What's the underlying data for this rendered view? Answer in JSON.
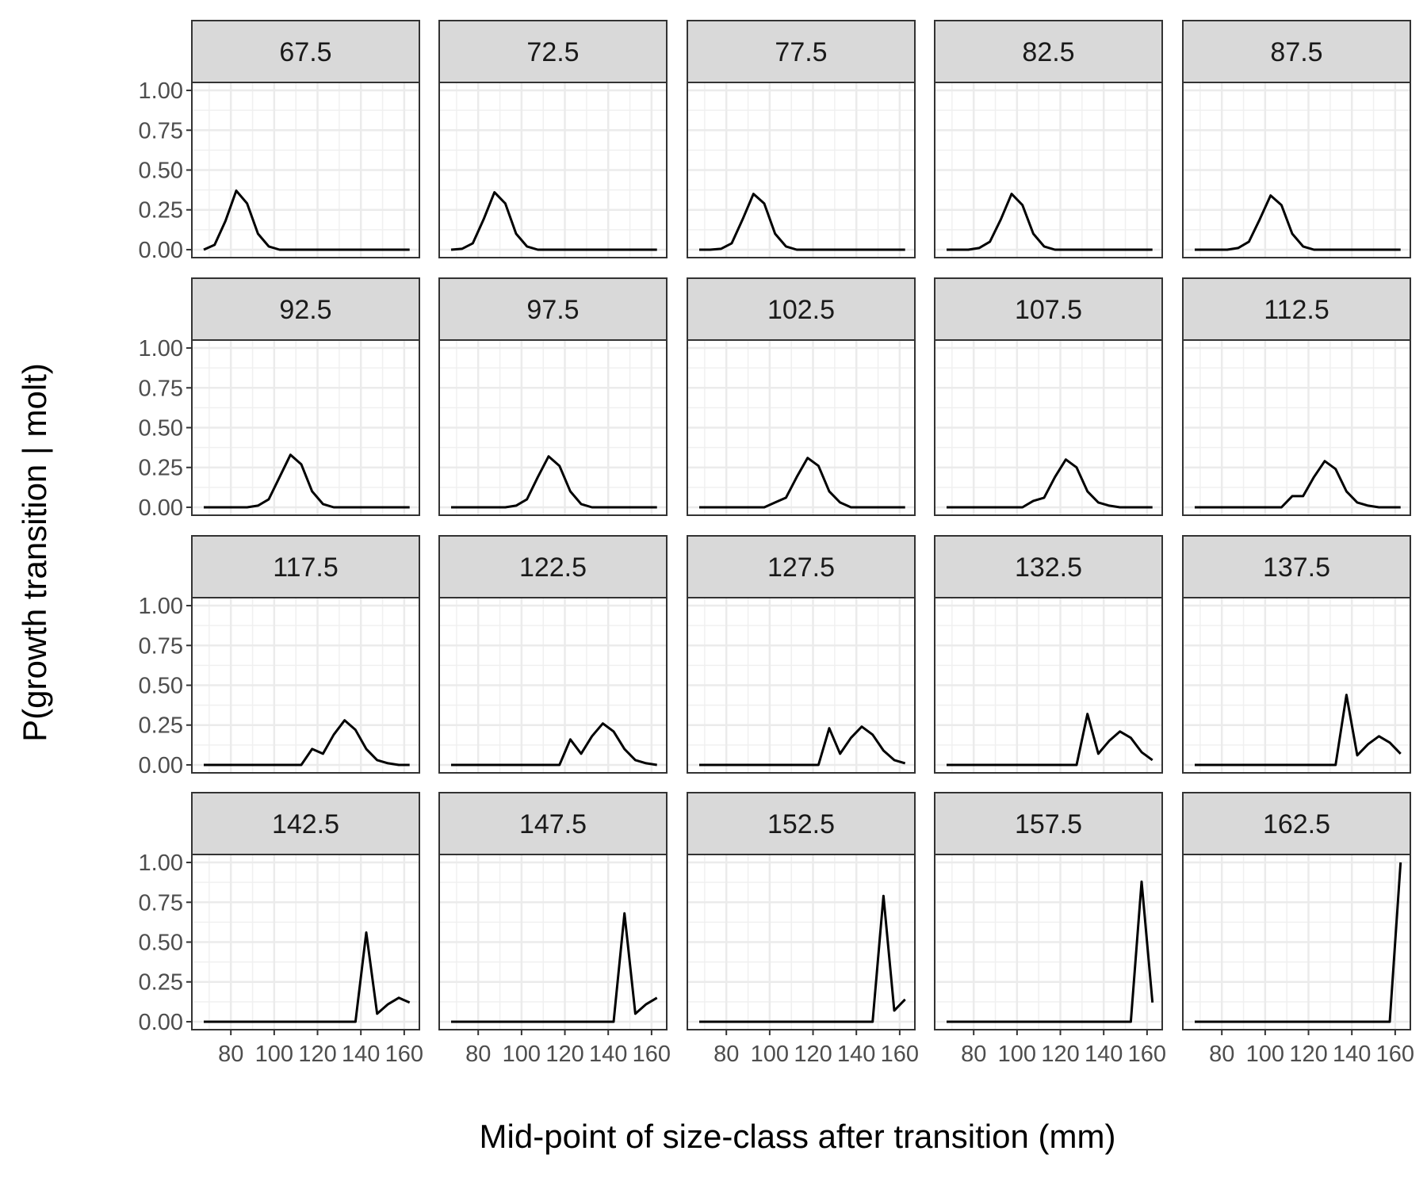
{
  "chart_data": {
    "type": "line",
    "layout": "faceted-grid",
    "xlabel": "Mid-point of size-class after transition (mm)",
    "ylabel": "P(growth transition | molt)",
    "xlim": [
      62,
      167
    ],
    "ylim": [
      -0.05,
      1.05
    ],
    "x_ticks": [
      80,
      100,
      120,
      140,
      160
    ],
    "x_tick_labels": [
      "80",
      "100",
      "120",
      "140",
      "160"
    ],
    "y_ticks": [
      0,
      0.25,
      0.5,
      0.75,
      1
    ],
    "y_tick_labels": [
      "0.00",
      "0.25",
      "0.50",
      "0.75",
      "1.00"
    ],
    "x": [
      67.5,
      72.5,
      77.5,
      82.5,
      87.5,
      92.5,
      97.5,
      102.5,
      107.5,
      112.5,
      117.5,
      122.5,
      127.5,
      132.5,
      137.5,
      142.5,
      147.5,
      152.5,
      157.5,
      162.5
    ],
    "grid": true,
    "line_color": "#000000",
    "panels": [
      {
        "label": "67.5",
        "values": [
          0.0,
          0.03,
          0.18,
          0.37,
          0.29,
          0.1,
          0.02,
          0.0,
          0.0,
          0.0,
          0.0,
          0.0,
          0.0,
          0.0,
          0.0,
          0.0,
          0.0,
          0.0,
          0.0,
          0.0
        ]
      },
      {
        "label": "72.5",
        "values": [
          0.0,
          0.005,
          0.04,
          0.19,
          0.36,
          0.29,
          0.1,
          0.02,
          0.0,
          0.0,
          0.0,
          0.0,
          0.0,
          0.0,
          0.0,
          0.0,
          0.0,
          0.0,
          0.0,
          0.0
        ]
      },
      {
        "label": "77.5",
        "values": [
          0.0,
          0.0,
          0.005,
          0.04,
          0.19,
          0.35,
          0.29,
          0.1,
          0.02,
          0.0,
          0.0,
          0.0,
          0.0,
          0.0,
          0.0,
          0.0,
          0.0,
          0.0,
          0.0,
          0.0
        ]
      },
      {
        "label": "82.5",
        "values": [
          0.0,
          0.0,
          0.0,
          0.01,
          0.05,
          0.19,
          0.35,
          0.28,
          0.1,
          0.02,
          0.0,
          0.0,
          0.0,
          0.0,
          0.0,
          0.0,
          0.0,
          0.0,
          0.0,
          0.0
        ]
      },
      {
        "label": "87.5",
        "values": [
          0.0,
          0.0,
          0.0,
          0.0,
          0.01,
          0.05,
          0.19,
          0.34,
          0.28,
          0.1,
          0.02,
          0.0,
          0.0,
          0.0,
          0.0,
          0.0,
          0.0,
          0.0,
          0.0,
          0.0
        ]
      },
      {
        "label": "92.5",
        "values": [
          0.0,
          0.0,
          0.0,
          0.0,
          0.0,
          0.01,
          0.05,
          0.19,
          0.33,
          0.27,
          0.1,
          0.02,
          0.0,
          0.0,
          0.0,
          0.0,
          0.0,
          0.0,
          0.0,
          0.0
        ]
      },
      {
        "label": "97.5",
        "values": [
          0.0,
          0.0,
          0.0,
          0.0,
          0.0,
          0.0,
          0.01,
          0.05,
          0.19,
          0.32,
          0.26,
          0.1,
          0.02,
          0.0,
          0.0,
          0.0,
          0.0,
          0.0,
          0.0,
          0.0
        ]
      },
      {
        "label": "102.5",
        "values": [
          0.0,
          0.0,
          0.0,
          0.0,
          0.0,
          0.0,
          0.0,
          0.03,
          0.06,
          0.19,
          0.31,
          0.26,
          0.1,
          0.03,
          0.0,
          0.0,
          0.0,
          0.0,
          0.0,
          0.0
        ]
      },
      {
        "label": "107.5",
        "values": [
          0.0,
          0.0,
          0.0,
          0.0,
          0.0,
          0.0,
          0.0,
          0.0,
          0.04,
          0.06,
          0.19,
          0.3,
          0.25,
          0.1,
          0.03,
          0.01,
          0.0,
          0.0,
          0.0,
          0.0
        ]
      },
      {
        "label": "112.5",
        "values": [
          0.0,
          0.0,
          0.0,
          0.0,
          0.0,
          0.0,
          0.0,
          0.0,
          0.0,
          0.07,
          0.07,
          0.19,
          0.29,
          0.24,
          0.1,
          0.03,
          0.01,
          0.0,
          0.0,
          0.0
        ]
      },
      {
        "label": "117.5",
        "values": [
          0.0,
          0.0,
          0.0,
          0.0,
          0.0,
          0.0,
          0.0,
          0.0,
          0.0,
          0.0,
          0.1,
          0.07,
          0.19,
          0.28,
          0.22,
          0.1,
          0.03,
          0.01,
          0.0,
          0.0
        ]
      },
      {
        "label": "122.5",
        "values": [
          0.0,
          0.0,
          0.0,
          0.0,
          0.0,
          0.0,
          0.0,
          0.0,
          0.0,
          0.0,
          0.0,
          0.16,
          0.07,
          0.18,
          0.26,
          0.21,
          0.1,
          0.03,
          0.01,
          0.0
        ]
      },
      {
        "label": "127.5",
        "values": [
          0.0,
          0.0,
          0.0,
          0.0,
          0.0,
          0.0,
          0.0,
          0.0,
          0.0,
          0.0,
          0.0,
          0.0,
          0.23,
          0.07,
          0.17,
          0.24,
          0.19,
          0.09,
          0.03,
          0.01
        ]
      },
      {
        "label": "132.5",
        "values": [
          0.0,
          0.0,
          0.0,
          0.0,
          0.0,
          0.0,
          0.0,
          0.0,
          0.0,
          0.0,
          0.0,
          0.0,
          0.0,
          0.32,
          0.07,
          0.15,
          0.21,
          0.17,
          0.08,
          0.03
        ]
      },
      {
        "label": "137.5",
        "values": [
          0.0,
          0.0,
          0.0,
          0.0,
          0.0,
          0.0,
          0.0,
          0.0,
          0.0,
          0.0,
          0.0,
          0.0,
          0.0,
          0.0,
          0.44,
          0.06,
          0.13,
          0.18,
          0.14,
          0.07
        ]
      },
      {
        "label": "142.5",
        "values": [
          0.0,
          0.0,
          0.0,
          0.0,
          0.0,
          0.0,
          0.0,
          0.0,
          0.0,
          0.0,
          0.0,
          0.0,
          0.0,
          0.0,
          0.0,
          0.56,
          0.05,
          0.11,
          0.15,
          0.12
        ]
      },
      {
        "label": "147.5",
        "values": [
          0.0,
          0.0,
          0.0,
          0.0,
          0.0,
          0.0,
          0.0,
          0.0,
          0.0,
          0.0,
          0.0,
          0.0,
          0.0,
          0.0,
          0.0,
          0.0,
          0.68,
          0.05,
          0.11,
          0.15
        ]
      },
      {
        "label": "152.5",
        "values": [
          0.0,
          0.0,
          0.0,
          0.0,
          0.0,
          0.0,
          0.0,
          0.0,
          0.0,
          0.0,
          0.0,
          0.0,
          0.0,
          0.0,
          0.0,
          0.0,
          0.0,
          0.79,
          0.07,
          0.14
        ]
      },
      {
        "label": "157.5",
        "values": [
          0.0,
          0.0,
          0.0,
          0.0,
          0.0,
          0.0,
          0.0,
          0.0,
          0.0,
          0.0,
          0.0,
          0.0,
          0.0,
          0.0,
          0.0,
          0.0,
          0.0,
          0.0,
          0.88,
          0.12
        ]
      },
      {
        "label": "162.5",
        "values": [
          0.0,
          0.0,
          0.0,
          0.0,
          0.0,
          0.0,
          0.0,
          0.0,
          0.0,
          0.0,
          0.0,
          0.0,
          0.0,
          0.0,
          0.0,
          0.0,
          0.0,
          0.0,
          0.0,
          1.0
        ]
      }
    ]
  }
}
